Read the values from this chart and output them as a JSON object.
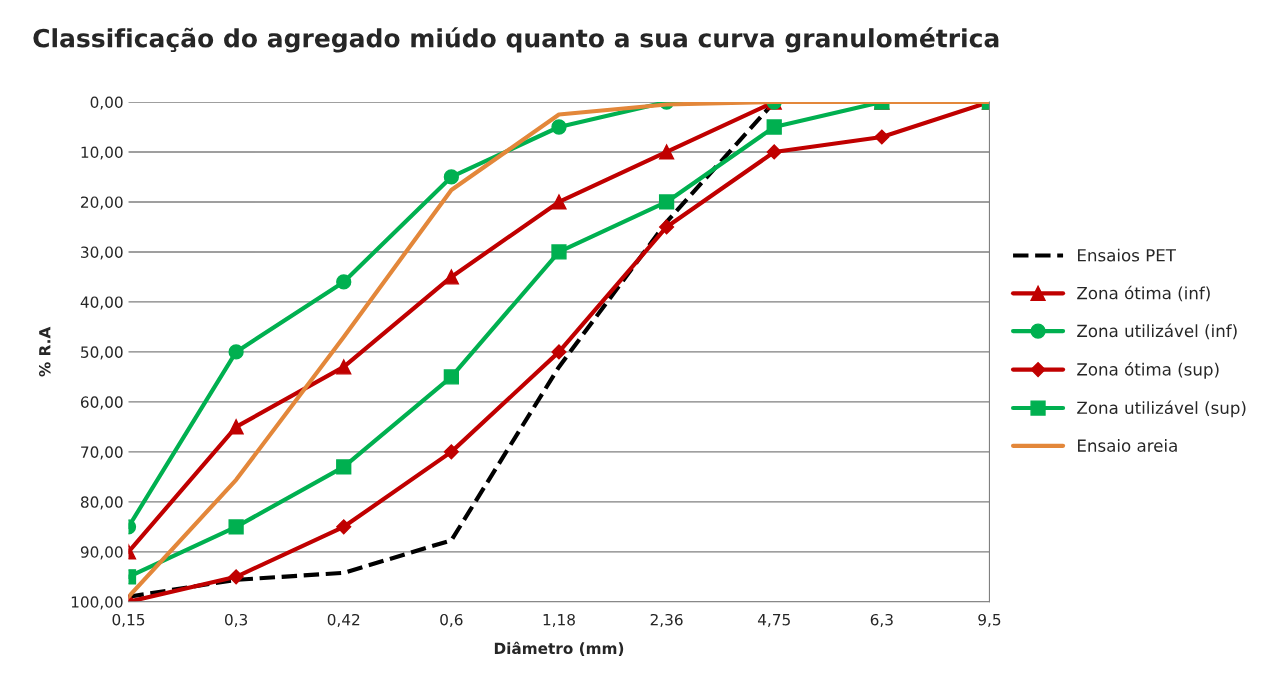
{
  "chart_data": {
    "type": "line",
    "title": "Classificação do agregado miúdo quanto a sua curva granulométrica",
    "xlabel": "Diâmetro (mm)",
    "ylabel": "% R.A",
    "categories": [
      "0,15",
      "0,3",
      "0,42",
      "0,6",
      "1,18",
      "2,36",
      "4,75",
      "6,3",
      "9,5"
    ],
    "series": [
      {
        "name": "Ensaios PET",
        "color": "#000000",
        "marker": "none",
        "line_style": "dashed",
        "values": [
          99,
          95.6,
          94.2,
          87.7,
          53,
          24,
          0,
          null,
          null
        ]
      },
      {
        "name": "Zona ótima (inf)",
        "color": "#c00000",
        "marker": "triangle",
        "line_style": "solid",
        "values": [
          90,
          65,
          53,
          35,
          20,
          10,
          0,
          0,
          0
        ]
      },
      {
        "name": "Zona utilizável (inf)",
        "color": "#00b050",
        "marker": "circle",
        "line_style": "solid",
        "values": [
          85,
          50,
          36,
          15,
          5,
          0,
          0,
          null,
          null
        ]
      },
      {
        "name": "Zona ótima (sup)",
        "color": "#c00000",
        "marker": "diamond",
        "line_style": "solid",
        "values": [
          100,
          95,
          85,
          70,
          50,
          25,
          10,
          7,
          0
        ]
      },
      {
        "name": "Zona utilizável (sup)",
        "color": "#00b050",
        "marker": "square",
        "line_style": "solid",
        "values": [
          95,
          85,
          73,
          55,
          30,
          20,
          5,
          0,
          0
        ]
      },
      {
        "name": "Ensaio areia",
        "color": "#e3873a",
        "marker": "none",
        "line_style": "solid",
        "values": [
          99,
          75.6,
          47,
          17.6,
          2.5,
          0.5,
          0,
          0,
          0
        ]
      }
    ],
    "ylim": [
      100,
      0
    ],
    "yticks": [
      {
        "value": 0,
        "label": "0,00"
      },
      {
        "value": 10,
        "label": "10,00"
      },
      {
        "value": 20,
        "label": "20,00"
      },
      {
        "value": 30,
        "label": "30,00"
      },
      {
        "value": 40,
        "label": "40,00"
      },
      {
        "value": 50,
        "label": "50,00"
      },
      {
        "value": 60,
        "label": "60,00"
      },
      {
        "value": 70,
        "label": "70,00"
      },
      {
        "value": 80,
        "label": "80,00"
      },
      {
        "value": 90,
        "label": "90,00"
      },
      {
        "value": 100,
        "label": "100,00"
      }
    ],
    "grid": "y",
    "legend": "right"
  }
}
